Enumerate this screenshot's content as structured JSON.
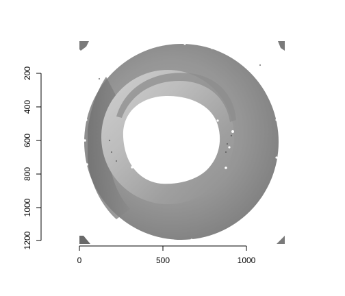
{
  "plot": {
    "x_ticks": [
      "0",
      "500",
      "1000"
    ],
    "y_ticks": [
      "200",
      "400",
      "600",
      "800",
      "1000",
      "1200"
    ],
    "image_description": "grayscale raster image of a ring-shaped disk with a white center and dark grey outer annulus"
  }
}
